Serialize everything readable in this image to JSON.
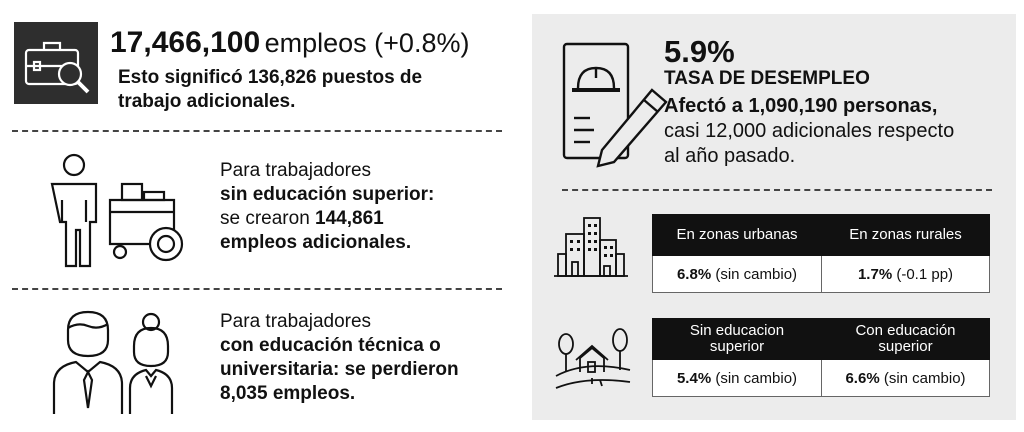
{
  "left": {
    "employment": {
      "number": "17,466,100",
      "unit": "empleos (+0.8%)",
      "subtext": [
        "Esto significó 136,826 puestos de",
        "trabajo adicionales."
      ]
    },
    "no_higher_ed": {
      "line1": "Para trabajadores",
      "line2": "sin educación superior:",
      "line3_pre": "se crearon ",
      "line3_bold": "144,861",
      "line4": "empleos adicionales."
    },
    "higher_ed": {
      "line1": "Para trabajadores",
      "line2": "con educación técnica o",
      "line3": "universitaria: se perdieron",
      "line4": "8,035 empleos."
    }
  },
  "right": {
    "rate": "5.9%",
    "rate_label": "TASA DE DESEMPLEO",
    "desc": [
      "Afectó a 1,090,190 personas,",
      "casi 12,000 adicionales respecto",
      "al año pasado."
    ],
    "zones_table": {
      "headers": [
        "En zonas urbanas",
        "En zonas rurales"
      ],
      "cells": [
        {
          "value": "6.8%",
          "note": " (sin cambio)"
        },
        {
          "value": "1.7%",
          "note": " (-0.1 pp)"
        }
      ]
    },
    "edu_table": {
      "headers": [
        [
          "Sin educacion",
          "superior"
        ],
        [
          "Con educación",
          "superior"
        ]
      ],
      "cells": [
        {
          "value": "5.4%",
          "note": " (sin cambio)"
        },
        {
          "value": "6.6%",
          "note": " (sin cambio)"
        }
      ]
    }
  },
  "icons": {
    "briefcase": "briefcase-search-icon",
    "worker": "worker-with-cart-icon",
    "professionals": "professionals-icon",
    "document": "document-helmet-pen-icon",
    "city": "city-buildings-icon",
    "rural": "rural-house-icon"
  },
  "colors": {
    "panel_bg": "#ececec",
    "header_bg": "#111111",
    "icon_box_bg": "#2e2e2e"
  }
}
